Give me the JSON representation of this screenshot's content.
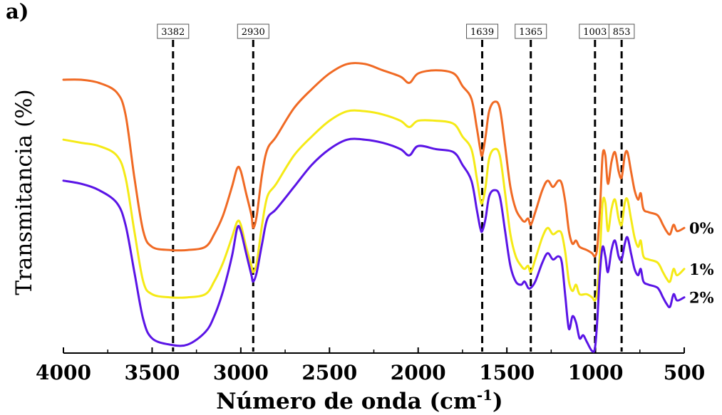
{
  "panel_label": "a)",
  "chart_data": {
    "type": "line",
    "xlabel": "Número de onda (cm",
    "xlabel_superscript": "-1",
    "xlabel_suffix": ")",
    "ylabel": "Transmitancia (%)",
    "xlim": [
      4000,
      500
    ],
    "ylim": [
      0,
      100
    ],
    "x_ticks": [
      4000,
      3500,
      3000,
      2500,
      2000,
      1500,
      1000,
      500
    ],
    "x_tick_labels": [
      "4000",
      "3500",
      "3000",
      "2500",
      "2000",
      "1500",
      "1000",
      "500"
    ],
    "annotations": [
      {
        "x": 3382,
        "label": "3382"
      },
      {
        "x": 2930,
        "label": "2930"
      },
      {
        "x": 1639,
        "label": "1639"
      },
      {
        "x": 1365,
        "label": "1365"
      },
      {
        "x": 1003,
        "label": "1003"
      },
      {
        "x": 853,
        "label": "853"
      }
    ],
    "series": [
      {
        "name": "0%",
        "color": "#f06a24",
        "points": [
          [
            4000,
            86
          ],
          [
            3900,
            86
          ],
          [
            3800,
            85
          ],
          [
            3700,
            82
          ],
          [
            3650,
            75
          ],
          [
            3600,
            55
          ],
          [
            3550,
            38
          ],
          [
            3500,
            33
          ],
          [
            3400,
            32
          ],
          [
            3300,
            32
          ],
          [
            3200,
            33
          ],
          [
            3150,
            37
          ],
          [
            3100,
            43
          ],
          [
            3050,
            52
          ],
          [
            3020,
            58
          ],
          [
            3000,
            57
          ],
          [
            2970,
            50
          ],
          [
            2940,
            43
          ],
          [
            2930,
            39
          ],
          [
            2910,
            43
          ],
          [
            2880,
            56
          ],
          [
            2850,
            64
          ],
          [
            2800,
            68
          ],
          [
            2700,
            77
          ],
          [
            2600,
            83
          ],
          [
            2500,
            88
          ],
          [
            2400,
            91
          ],
          [
            2300,
            91
          ],
          [
            2200,
            89
          ],
          [
            2100,
            87
          ],
          [
            2050,
            85
          ],
          [
            2000,
            88
          ],
          [
            1900,
            89
          ],
          [
            1800,
            88
          ],
          [
            1750,
            84
          ],
          [
            1700,
            80
          ],
          [
            1670,
            71
          ],
          [
            1650,
            64
          ],
          [
            1639,
            62
          ],
          [
            1620,
            68
          ],
          [
            1600,
            76
          ],
          [
            1570,
            79
          ],
          [
            1540,
            77
          ],
          [
            1510,
            65
          ],
          [
            1480,
            52
          ],
          [
            1450,
            45
          ],
          [
            1420,
            42
          ],
          [
            1400,
            41
          ],
          [
            1380,
            42
          ],
          [
            1365,
            40
          ],
          [
            1340,
            44
          ],
          [
            1300,
            51
          ],
          [
            1270,
            54
          ],
          [
            1240,
            52
          ],
          [
            1210,
            54
          ],
          [
            1190,
            53
          ],
          [
            1170,
            47
          ],
          [
            1150,
            38
          ],
          [
            1130,
            34
          ],
          [
            1110,
            35
          ],
          [
            1090,
            33
          ],
          [
            1050,
            32
          ],
          [
            1020,
            31
          ],
          [
            1003,
            30
          ],
          [
            990,
            33
          ],
          [
            975,
            45
          ],
          [
            960,
            62
          ],
          [
            945,
            62
          ],
          [
            930,
            53
          ],
          [
            910,
            60
          ],
          [
            890,
            63
          ],
          [
            870,
            57
          ],
          [
            853,
            55
          ],
          [
            835,
            62
          ],
          [
            820,
            63
          ],
          [
            800,
            57
          ],
          [
            780,
            51
          ],
          [
            760,
            48
          ],
          [
            745,
            50
          ],
          [
            730,
            45
          ],
          [
            700,
            44
          ],
          [
            650,
            43
          ],
          [
            620,
            40
          ],
          [
            600,
            38
          ],
          [
            580,
            37
          ],
          [
            560,
            40
          ],
          [
            540,
            38
          ],
          [
            500,
            39
          ]
        ]
      },
      {
        "name": "1%",
        "color": "#f5ea16",
        "points": [
          [
            4000,
            67
          ],
          [
            3900,
            66
          ],
          [
            3800,
            65
          ],
          [
            3700,
            62
          ],
          [
            3650,
            55
          ],
          [
            3600,
            38
          ],
          [
            3550,
            22
          ],
          [
            3500,
            18
          ],
          [
            3400,
            17
          ],
          [
            3300,
            17
          ],
          [
            3200,
            18
          ],
          [
            3150,
            22
          ],
          [
            3100,
            28
          ],
          [
            3050,
            36
          ],
          [
            3020,
            41
          ],
          [
            3000,
            40
          ],
          [
            2970,
            33
          ],
          [
            2940,
            27
          ],
          [
            2930,
            25
          ],
          [
            2910,
            28
          ],
          [
            2880,
            40
          ],
          [
            2850,
            49
          ],
          [
            2800,
            53
          ],
          [
            2700,
            62
          ],
          [
            2600,
            68
          ],
          [
            2500,
            73
          ],
          [
            2400,
            76
          ],
          [
            2300,
            76
          ],
          [
            2200,
            75
          ],
          [
            2100,
            73
          ],
          [
            2050,
            71
          ],
          [
            2000,
            73
          ],
          [
            1900,
            73
          ],
          [
            1800,
            72
          ],
          [
            1750,
            68
          ],
          [
            1700,
            64
          ],
          [
            1670,
            55
          ],
          [
            1650,
            48
          ],
          [
            1639,
            47
          ],
          [
            1620,
            52
          ],
          [
            1600,
            61
          ],
          [
            1570,
            64
          ],
          [
            1540,
            62
          ],
          [
            1510,
            50
          ],
          [
            1480,
            37
          ],
          [
            1450,
            30
          ],
          [
            1420,
            27
          ],
          [
            1400,
            26
          ],
          [
            1380,
            27
          ],
          [
            1365,
            25
          ],
          [
            1340,
            29
          ],
          [
            1300,
            36
          ],
          [
            1270,
            39
          ],
          [
            1240,
            37
          ],
          [
            1210,
            38
          ],
          [
            1190,
            37
          ],
          [
            1170,
            31
          ],
          [
            1150,
            22
          ],
          [
            1130,
            19
          ],
          [
            1110,
            21
          ],
          [
            1090,
            18
          ],
          [
            1050,
            18
          ],
          [
            1020,
            17
          ],
          [
            1003,
            16
          ],
          [
            990,
            19
          ],
          [
            975,
            31
          ],
          [
            960,
            47
          ],
          [
            945,
            47
          ],
          [
            930,
            38
          ],
          [
            910,
            45
          ],
          [
            890,
            48
          ],
          [
            870,
            42
          ],
          [
            853,
            40
          ],
          [
            835,
            47
          ],
          [
            820,
            48
          ],
          [
            800,
            42
          ],
          [
            780,
            36
          ],
          [
            760,
            33
          ],
          [
            745,
            35
          ],
          [
            730,
            30
          ],
          [
            700,
            29
          ],
          [
            650,
            28
          ],
          [
            620,
            25
          ],
          [
            600,
            23
          ],
          [
            580,
            22
          ],
          [
            560,
            26
          ],
          [
            540,
            24
          ],
          [
            500,
            26
          ]
        ]
      },
      {
        "name": "2%",
        "color": "#5a14e6",
        "points": [
          [
            4000,
            54
          ],
          [
            3900,
            53
          ],
          [
            3800,
            51
          ],
          [
            3700,
            47
          ],
          [
            3650,
            40
          ],
          [
            3600,
            25
          ],
          [
            3550,
            10
          ],
          [
            3500,
            4
          ],
          [
            3400,
            2
          ],
          [
            3300,
            2
          ],
          [
            3200,
            6
          ],
          [
            3150,
            11
          ],
          [
            3100,
            19
          ],
          [
            3050,
            30
          ],
          [
            3020,
            39
          ],
          [
            3000,
            38
          ],
          [
            2970,
            31
          ],
          [
            2940,
            24
          ],
          [
            2930,
            22
          ],
          [
            2910,
            25
          ],
          [
            2880,
            34
          ],
          [
            2850,
            42
          ],
          [
            2800,
            45
          ],
          [
            2700,
            52
          ],
          [
            2600,
            59
          ],
          [
            2500,
            64
          ],
          [
            2400,
            67
          ],
          [
            2300,
            67
          ],
          [
            2200,
            66
          ],
          [
            2100,
            64
          ],
          [
            2050,
            62
          ],
          [
            2000,
            65
          ],
          [
            1900,
            64
          ],
          [
            1800,
            63
          ],
          [
            1750,
            59
          ],
          [
            1700,
            54
          ],
          [
            1670,
            45
          ],
          [
            1650,
            39
          ],
          [
            1639,
            38
          ],
          [
            1620,
            42
          ],
          [
            1600,
            49
          ],
          [
            1570,
            51
          ],
          [
            1540,
            49
          ],
          [
            1510,
            38
          ],
          [
            1480,
            27
          ],
          [
            1450,
            22
          ],
          [
            1420,
            21
          ],
          [
            1400,
            22
          ],
          [
            1380,
            20
          ],
          [
            1365,
            20
          ],
          [
            1340,
            22
          ],
          [
            1300,
            28
          ],
          [
            1270,
            31
          ],
          [
            1240,
            29
          ],
          [
            1210,
            30
          ],
          [
            1190,
            28
          ],
          [
            1170,
            17
          ],
          [
            1150,
            7
          ],
          [
            1130,
            11
          ],
          [
            1110,
            9
          ],
          [
            1090,
            4
          ],
          [
            1070,
            5
          ],
          [
            1050,
            3
          ],
          [
            1020,
            0
          ],
          [
            1003,
            1
          ],
          [
            990,
            10
          ],
          [
            975,
            25
          ],
          [
            960,
            33
          ],
          [
            945,
            30
          ],
          [
            930,
            25
          ],
          [
            910,
            32
          ],
          [
            890,
            35
          ],
          [
            870,
            30
          ],
          [
            853,
            29
          ],
          [
            835,
            34
          ],
          [
            820,
            36
          ],
          [
            800,
            31
          ],
          [
            780,
            26
          ],
          [
            760,
            24
          ],
          [
            745,
            26
          ],
          [
            730,
            22
          ],
          [
            700,
            21
          ],
          [
            650,
            20
          ],
          [
            620,
            17
          ],
          [
            600,
            15
          ],
          [
            580,
            14
          ],
          [
            560,
            18
          ],
          [
            540,
            16
          ],
          [
            500,
            17
          ]
        ]
      }
    ]
  }
}
